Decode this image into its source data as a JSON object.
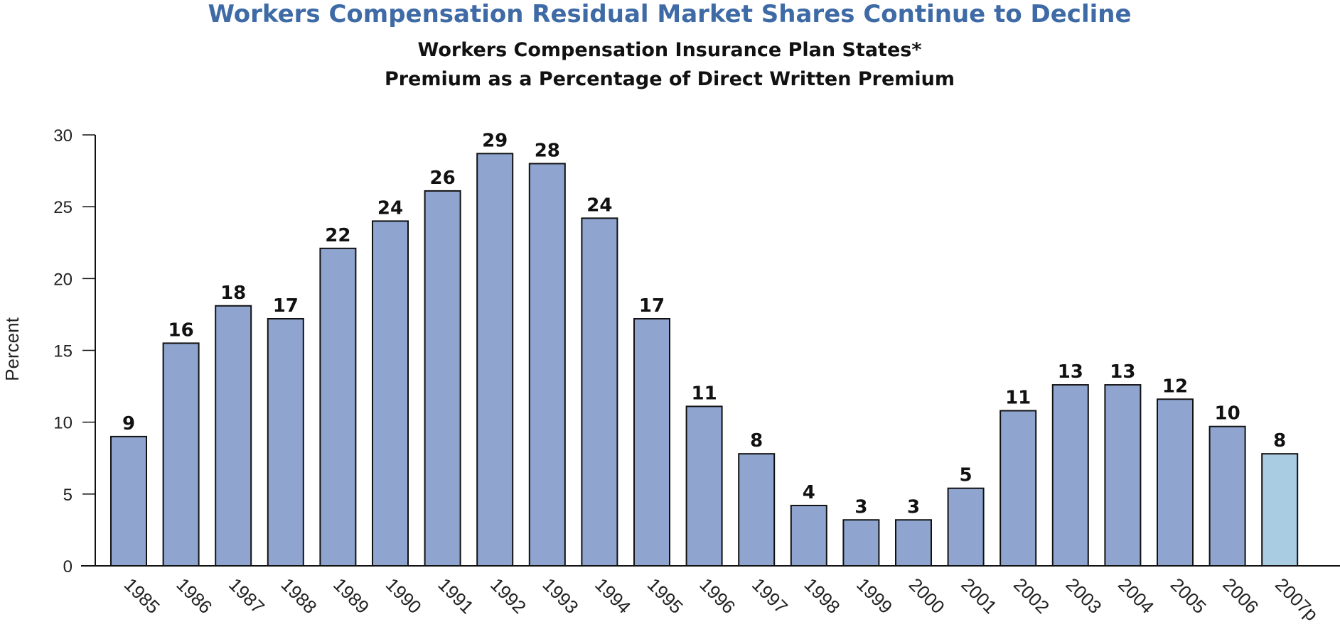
{
  "chart_data": {
    "type": "bar",
    "title": "Workers Compensation Residual Market Shares Continue to Decline",
    "subtitle": "Workers Compensation Insurance Plan States*",
    "subtitle2": "Premium as a Percentage of Direct Written Premium",
    "xlabel": "",
    "ylabel": "Percent",
    "ylim": [
      0,
      30
    ],
    "yticks": [
      0,
      5,
      10,
      15,
      20,
      25,
      30
    ],
    "grid": false,
    "categories": [
      "1985",
      "1986",
      "1987",
      "1988",
      "1989",
      "1990",
      "1991",
      "1992",
      "1993",
      "1994",
      "1995",
      "1996",
      "1997",
      "1998",
      "1999",
      "2000",
      "2001",
      "2002",
      "2003",
      "2004",
      "2005",
      "2006",
      "2007p"
    ],
    "values": [
      9,
      15.5,
      18.1,
      17.2,
      22.1,
      24,
      26.1,
      28.7,
      28,
      24.2,
      17.2,
      11.1,
      7.8,
      4.2,
      3.2,
      3.2,
      5.4,
      10.8,
      12.6,
      12.6,
      11.6,
      9.7,
      7.8
    ],
    "value_labels": [
      "9",
      "16",
      "18",
      "17",
      "22",
      "24",
      "26",
      "29",
      "28",
      "24",
      "17",
      "11",
      "8",
      "4",
      "3",
      "3",
      "5",
      "11",
      "13",
      "13",
      "12",
      "10",
      "8"
    ],
    "colors": {
      "title": "#3e6aa6",
      "bar": "#8fa5d0",
      "bar_projected": "#a9cce3",
      "bar_outline": "#111111",
      "text": "#111111"
    }
  }
}
